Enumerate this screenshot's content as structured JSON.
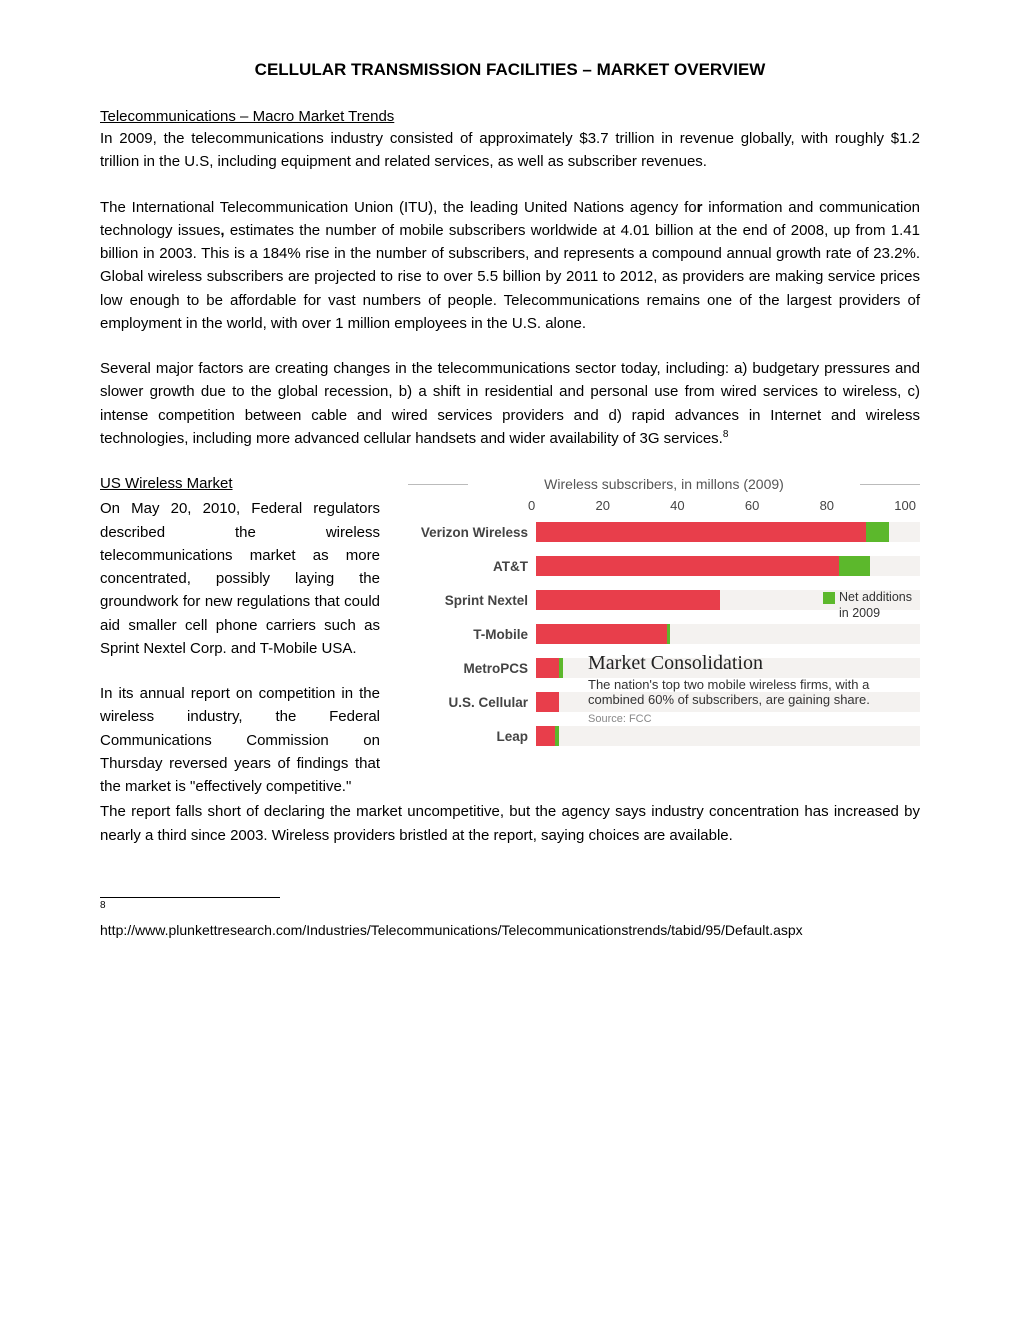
{
  "title": "CELLULAR TRANSMISSION FACILITIES – MARKET OVERVIEW",
  "section1": {
    "heading": "Telecommunications – Macro Market Trends",
    "p1": "In 2009, the telecommunications industry consisted of approximately $3.7 trillion in revenue globally, with roughly $1.2 trillion in the U.S, including equipment and related services, as well as subscriber revenues.",
    "p2a": "The International Telecommunication Union (ITU), the leading United Nations agency fo",
    "p2b": "r",
    "p2c": " information and communication technology issues",
    "p2d": ",",
    "p2e": " estimates the number of mobile subscribers worldwide at 4.01 billion at the end of 2008, up from 1.41 billion in 2003.  This is a 184% rise in the number of subscribers, and represents a compound annual growth rate of 23.2%.  Global wireless subscribers are projected to rise to over 5.5 billion by 2011 to 2012, as providers are making service prices low enough to be affordable for vast numbers of people.  Telecommunications remains one of the largest providers of employment in the world, with over 1 million employees in the U.S. alone.",
    "p3": "Several major factors are creating changes in the telecommunications sector today, including: a) budgetary pressures and slower growth due to the global recession, b) a shift in residential and personal use from wired services to wireless, c) intense competition between cable and wired services providers and d) rapid advances in Internet and wireless technologies, including more advanced cellular handsets and wider availability of 3G services.",
    "p3_sup": "8"
  },
  "section2": {
    "heading": "US Wireless Market",
    "left_p1": "On May 20, 2010, Federal regulators described the wireless telecommunications market as more concentrated, possibly laying the groundwork for new regulations that could aid smaller cell phone carriers such as Sprint Nextel Corp. and T-Mobile USA.",
    "left_p2": "In its annual report on competition in the wireless industry, the Federal Communications Commission on Thursday reversed years of findings that the market is \"effectively competitive.\"",
    "below": "The report falls short of declaring the market uncompetitive, but the agency says industry concentration has increased by nearly a third since 2003.  Wireless providers bristled at the report, saying choices are available."
  },
  "chart": {
    "type": "bar",
    "title": "Wireless subscribers, in millons (2009)",
    "xmax": 100,
    "ticks": [
      "0",
      "20",
      "40",
      "60",
      "80",
      "100"
    ],
    "base_color": "#e83e4b",
    "add_color": "#5cb82c",
    "bg_color": "#f4f2f0",
    "carriers": [
      {
        "name": "Verizon Wireless",
        "base": 86,
        "add": 6
      },
      {
        "name": "AT&T",
        "base": 79,
        "add": 8
      },
      {
        "name": "Sprint Nextel",
        "base": 48,
        "add": 0
      },
      {
        "name": "T-Mobile",
        "base": 34,
        "add": 1
      },
      {
        "name": "MetroPCS",
        "base": 6,
        "add": 1
      },
      {
        "name": "U.S. Cellular",
        "base": 6,
        "add": 0
      },
      {
        "name": "Leap",
        "base": 5,
        "add": 1
      }
    ],
    "legend": {
      "label1": "Net additions",
      "label2": "in 2009"
    },
    "consolidation": {
      "title": "Market Consolidation",
      "text": "The nation's top two mobile wireless firms, with a combined 60% of subscribers, are gaining share.",
      "source": "Source: FCC"
    }
  },
  "footnote": {
    "num": "8",
    "text": "http://www.plunkettresearch.com/Industries/Telecommunications/Telecommunicationstrends/tabid/95/Default.aspx"
  }
}
